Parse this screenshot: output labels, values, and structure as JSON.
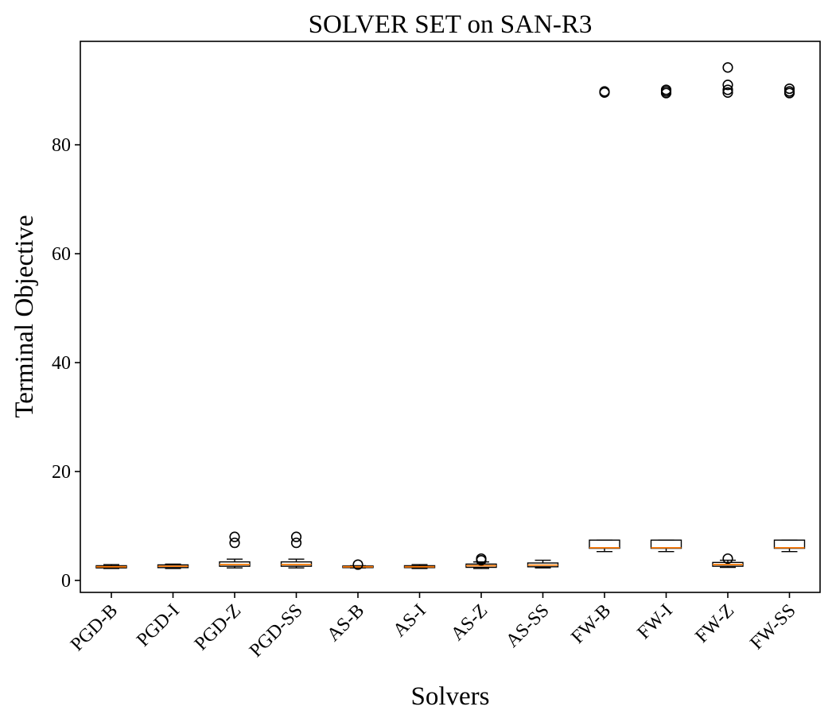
{
  "chart_data": {
    "type": "box",
    "title": "SOLVER SET on SAN-R3",
    "xlabel": "Solvers",
    "ylabel": "Terminal Objective",
    "ylim": [
      -2.2,
      99
    ],
    "yticks": [
      0,
      20,
      40,
      60,
      80
    ],
    "grid": false,
    "colors": {
      "box": "#000000",
      "median": "#ff7f0e",
      "outlier": "#000000"
    },
    "categories": [
      "PGD-B",
      "PGD-I",
      "PGD-Z",
      "PGD-SS",
      "AS-B",
      "AS-I",
      "AS-Z",
      "AS-SS",
      "FW-B",
      "FW-I",
      "FW-Z",
      "FW-SS"
    ],
    "boxes": [
      {
        "whisker_low": 2.2,
        "q1": 2.3,
        "median": 2.5,
        "q3": 2.7,
        "whisker_high": 2.9,
        "outliers": []
      },
      {
        "whisker_low": 2.2,
        "q1": 2.35,
        "median": 2.6,
        "q3": 2.85,
        "whisker_high": 3.0,
        "outliers": []
      },
      {
        "whisker_low": 2.3,
        "q1": 2.6,
        "median": 2.9,
        "q3": 3.4,
        "whisker_high": 3.9,
        "outliers": [
          6.9,
          8.0
        ]
      },
      {
        "whisker_low": 2.3,
        "q1": 2.6,
        "median": 2.9,
        "q3": 3.4,
        "whisker_high": 3.9,
        "outliers": [
          6.9,
          8.0
        ]
      },
      {
        "whisker_low": 2.3,
        "q1": 2.35,
        "median": 2.5,
        "q3": 2.65,
        "whisker_high": 2.7,
        "outliers": [
          2.9
        ]
      },
      {
        "whisker_low": 2.2,
        "q1": 2.35,
        "median": 2.5,
        "q3": 2.7,
        "whisker_high": 2.9,
        "outliers": []
      },
      {
        "whisker_low": 2.2,
        "q1": 2.4,
        "median": 2.7,
        "q3": 3.0,
        "whisker_high": 3.4,
        "outliers": [
          3.7,
          4.0
        ]
      },
      {
        "whisker_low": 2.3,
        "q1": 2.5,
        "median": 2.8,
        "q3": 3.2,
        "whisker_high": 3.7,
        "outliers": []
      },
      {
        "whisker_low": 5.3,
        "q1": 5.9,
        "median": 6.0,
        "q3": 7.4,
        "whisker_high": 7.4,
        "outliers": [
          89.6,
          89.8
        ]
      },
      {
        "whisker_low": 5.3,
        "q1": 5.9,
        "median": 6.0,
        "q3": 7.4,
        "whisker_high": 7.4,
        "outliers": [
          89.5,
          89.8,
          90.1
        ]
      },
      {
        "whisker_low": 2.4,
        "q1": 2.6,
        "median": 2.9,
        "q3": 3.3,
        "whisker_high": 3.7,
        "outliers": [
          4.0,
          89.6,
          90.1,
          91.0,
          94.2
        ]
      },
      {
        "whisker_low": 5.3,
        "q1": 5.9,
        "median": 6.0,
        "q3": 7.4,
        "whisker_high": 7.4,
        "outliers": [
          89.5,
          89.8,
          90.3
        ]
      }
    ]
  }
}
